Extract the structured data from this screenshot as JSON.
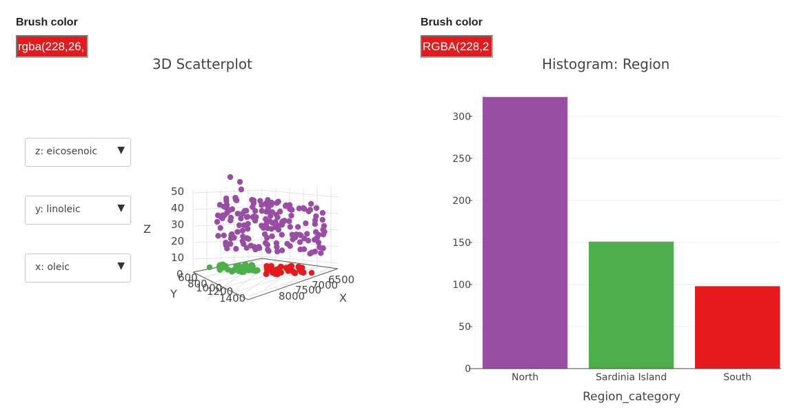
{
  "left_panel": {
    "brush_label": "Brush color",
    "brush_value": "rgba(228,26,",
    "title": "3D Scatterplot",
    "selects": [
      {
        "label": "z: eicosenoic"
      },
      {
        "label": "y: linoleic"
      },
      {
        "label": "x: oleic"
      }
    ]
  },
  "right_panel": {
    "brush_label": "Brush color",
    "brush_value": "RGBA(228,2",
    "title": "Histogram: Region"
  },
  "icons": {
    "caret": "▼"
  },
  "scatter3d": {
    "z_axis": {
      "label": "Z",
      "ticks": [
        "0",
        "10",
        "20",
        "30",
        "40",
        "50"
      ]
    },
    "y_axis": {
      "label": "Y",
      "ticks": [
        "600",
        "800",
        "1000",
        "1200",
        "1400"
      ]
    },
    "x_axis": {
      "label": "X",
      "ticks": [
        "6500",
        "7000",
        "7500",
        "8000"
      ]
    },
    "colors": {
      "North": "#984ea3",
      "Sardinia Island": "#4daf4a",
      "South": "#e41a1c"
    }
  },
  "chart_data": {
    "type": "bar",
    "categories": [
      "North",
      "Sardinia Island",
      "South"
    ],
    "values": [
      323,
      151,
      98
    ],
    "colors": [
      "#984ea3",
      "#4daf4a",
      "#e41a1c"
    ],
    "xlabel": "Region_category",
    "ylabel": "",
    "yticks": [
      0,
      50,
      100,
      150,
      200,
      250,
      300
    ],
    "ylim": [
      0,
      340
    ],
    "grid": true
  }
}
